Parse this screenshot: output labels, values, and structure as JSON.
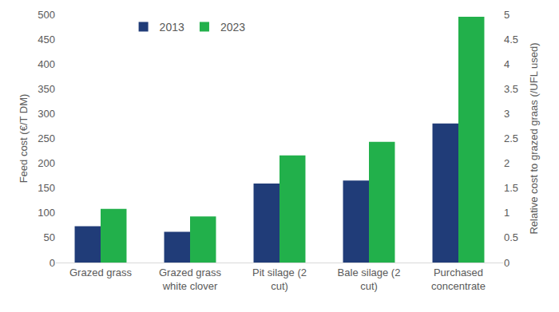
{
  "chart_data": {
    "type": "bar",
    "y_label": "Feed cost (€/T DM)",
    "y2_label": "Relative cost to grazed graas (/UFL used)",
    "categories": [
      "Grazed grass",
      "Grazed grass white clover",
      "Pit silage (2 cut)",
      "Bale silage (2 cut)",
      "Purchased concentrate"
    ],
    "series": [
      {
        "name": "2013",
        "color": "#203c78",
        "values": [
          73,
          62,
          159,
          165,
          280
        ]
      },
      {
        "name": "2023",
        "color": "#22b04b",
        "values": [
          108,
          93,
          216,
          243,
          495
        ]
      }
    ],
    "ylim": [
      0,
      500
    ],
    "yticks": [
      0,
      50,
      100,
      150,
      200,
      250,
      300,
      350,
      400,
      450,
      500
    ],
    "y2lim": [
      0,
      5
    ],
    "y2ticks": [
      0,
      0.5,
      1,
      1.5,
      2,
      2.5,
      3,
      3.5,
      4,
      4.5,
      5
    ],
    "grid": false,
    "legend": "upper left"
  }
}
